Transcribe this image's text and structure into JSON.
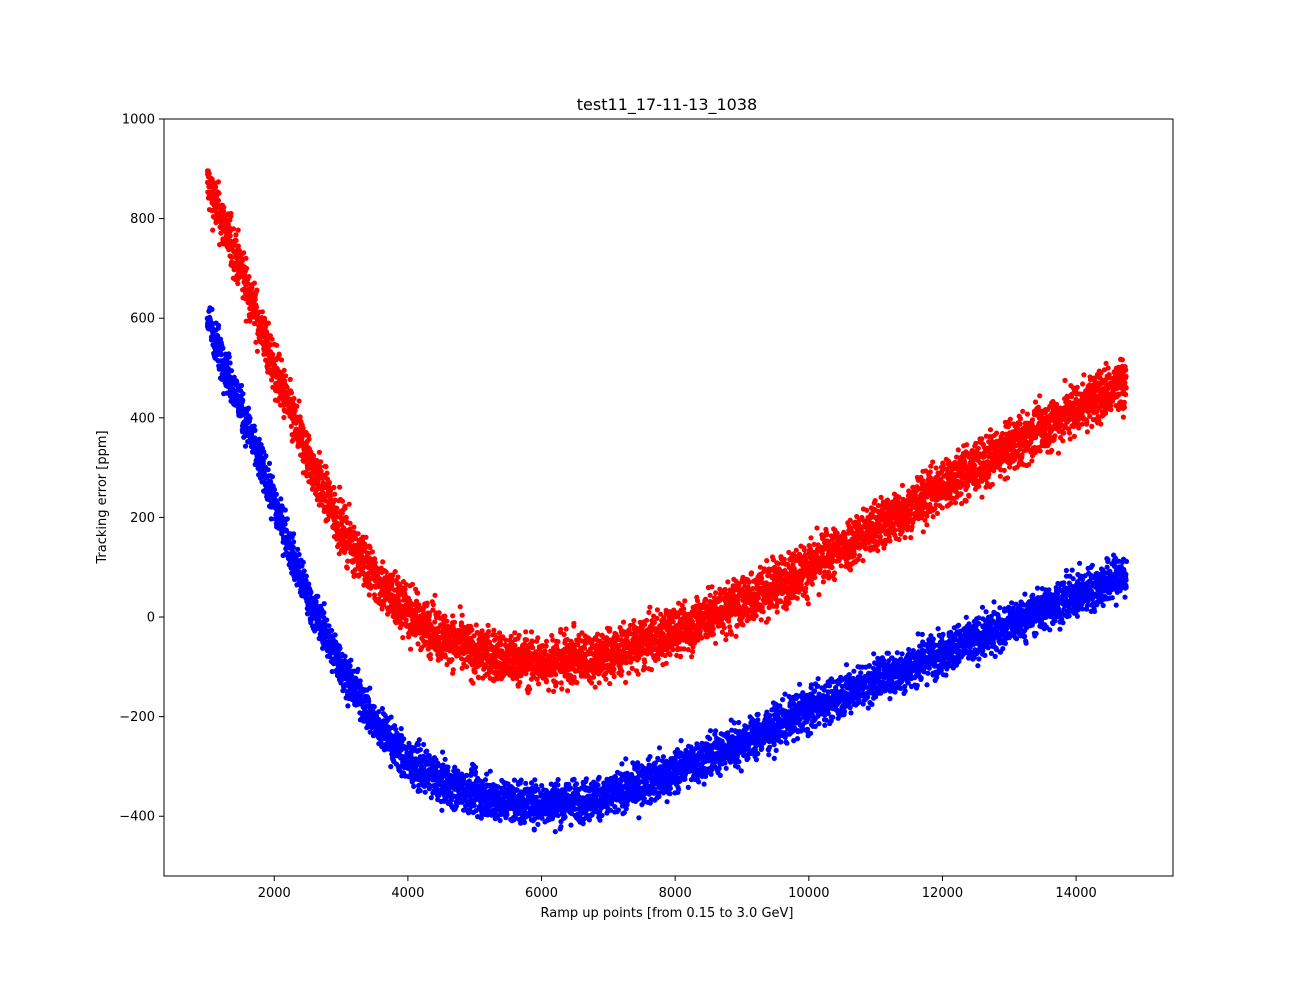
{
  "chart_data": {
    "type": "scatter",
    "title": "test11_17-11-13_1038",
    "xlabel": "Ramp up points [from 0.15 to 3.0 GeV]",
    "ylabel": "Tracking error [ppm]",
    "xlim": [
      350,
      15450
    ],
    "ylim": [
      -520,
      1000
    ],
    "x_ticks": [
      2000,
      4000,
      6000,
      8000,
      10000,
      12000,
      14000
    ],
    "y_ticks": [
      1000,
      800,
      600,
      400,
      200,
      0,
      -200,
      -400
    ],
    "x_tick_labels": [
      "2000",
      "4000",
      "6000",
      "8000",
      "10000",
      "12000",
      "14000"
    ],
    "y_tick_labels": [
      "1000",
      "800",
      "600",
      "400",
      "200",
      "0",
      "−200",
      "−400"
    ],
    "grid": false,
    "series": [
      {
        "color": "#ff0000",
        "x": [
          1000,
          1500,
          2000,
          2500,
          3000,
          3500,
          4000,
          4500,
          5000,
          5500,
          6000,
          6500,
          7000,
          7500,
          8000,
          8500,
          9000,
          9500,
          10000,
          10500,
          11000,
          11500,
          12000,
          12500,
          13000,
          13500,
          14000,
          14500,
          14750
        ],
        "center": [
          870,
          700,
          500,
          320,
          180,
          80,
          10,
          -40,
          -70,
          -85,
          -90,
          -85,
          -75,
          -55,
          -30,
          0,
          30,
          65,
          100,
          140,
          180,
          220,
          265,
          300,
          340,
          380,
          420,
          455,
          470
        ],
        "spread": [
          55,
          55,
          55,
          55,
          55,
          55,
          55,
          55,
          55,
          55,
          55,
          55,
          55,
          55,
          55,
          55,
          55,
          55,
          55,
          55,
          55,
          55,
          55,
          55,
          55,
          55,
          55,
          58,
          60
        ]
      },
      {
        "color": "#0000ff",
        "x": [
          1000,
          1500,
          2000,
          2500,
          3000,
          3500,
          4000,
          4500,
          5000,
          5500,
          6000,
          6500,
          7000,
          7500,
          8000,
          8500,
          9000,
          9500,
          10000,
          10500,
          11000,
          11500,
          12000,
          12500,
          13000,
          13500,
          14000,
          14500,
          14750
        ],
        "center": [
          600,
          420,
          230,
          40,
          -100,
          -210,
          -290,
          -330,
          -355,
          -370,
          -375,
          -370,
          -360,
          -335,
          -310,
          -280,
          -250,
          -220,
          -185,
          -155,
          -125,
          -100,
          -70,
          -45,
          -15,
          15,
          45,
          70,
          85
        ],
        "spread": [
          45,
          45,
          45,
          45,
          45,
          45,
          45,
          45,
          45,
          45,
          45,
          45,
          45,
          45,
          45,
          45,
          45,
          45,
          45,
          45,
          45,
          45,
          45,
          45,
          45,
          45,
          45,
          48,
          50
        ]
      }
    ]
  }
}
